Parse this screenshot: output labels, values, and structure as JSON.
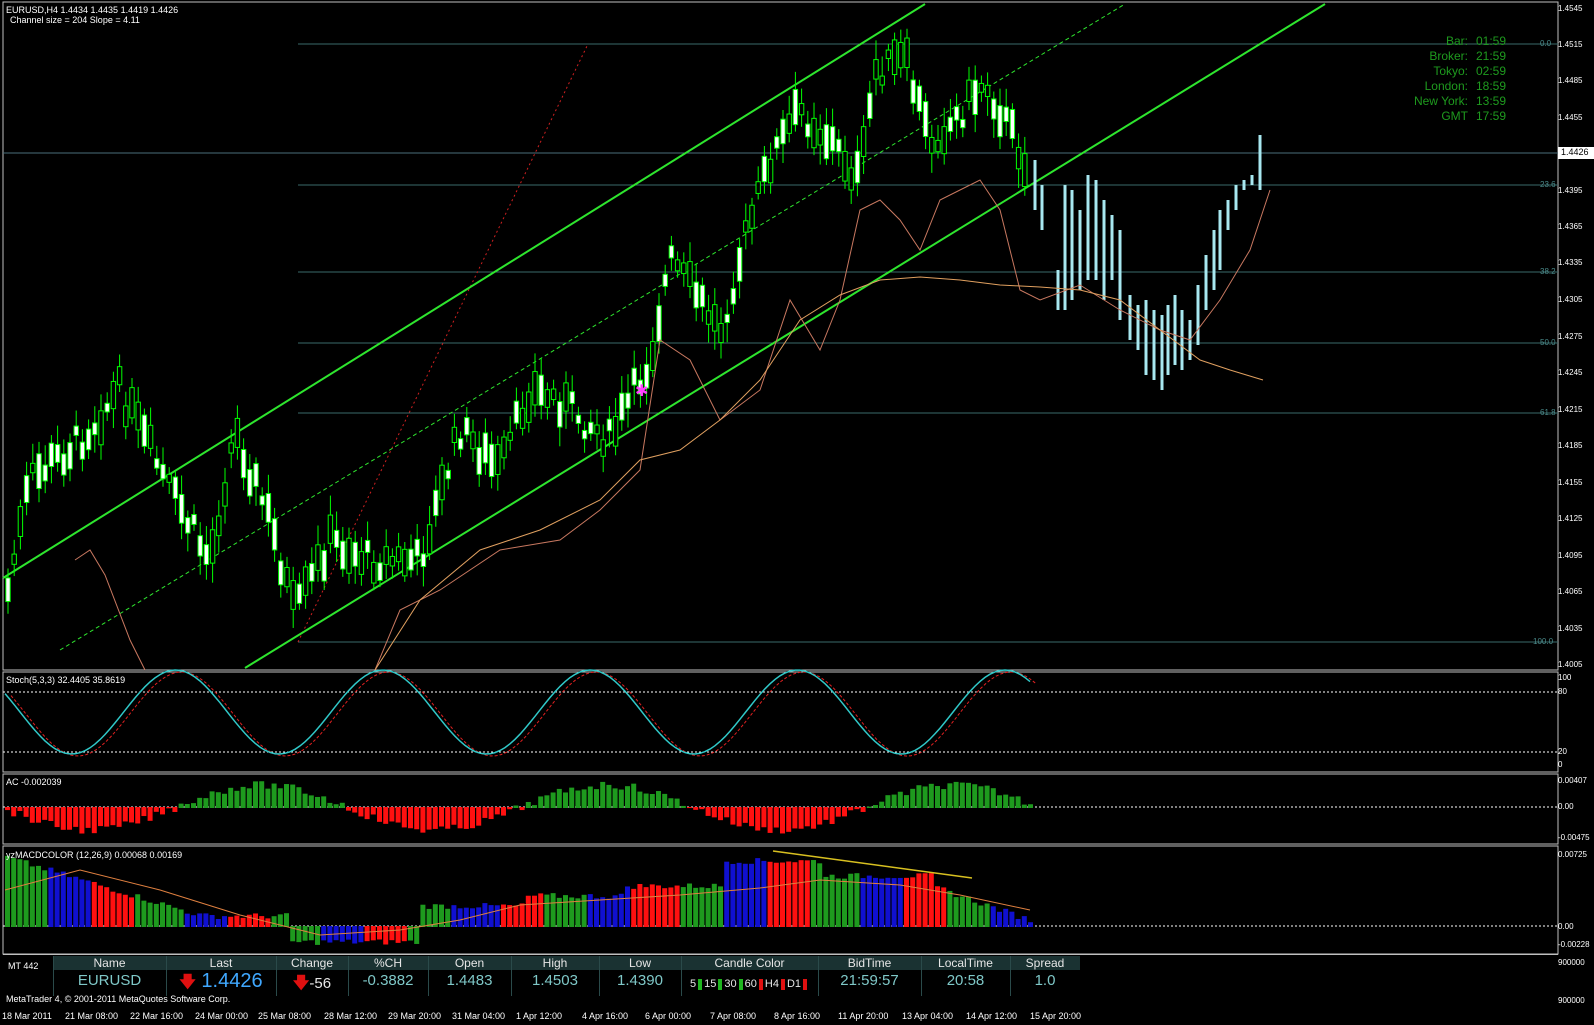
{
  "window": {
    "symbol_header": "EURUSD,H4  1.4434 1.4435 1.4419 1.4426",
    "channel_info": "Channel size = 204 Slope = 4.11",
    "current_price_tag": "1.4426"
  },
  "price_axis": [
    "1.4545",
    "1.4515",
    "1.4485",
    "1.4455",
    "1.4426",
    "1.4395",
    "1.4365",
    "1.4335",
    "1.4305",
    "1.4275",
    "1.4245",
    "1.4215",
    "1.4185",
    "1.4155",
    "1.4125",
    "1.4095",
    "1.4065",
    "1.4035",
    "1.4005"
  ],
  "fib_levels": [
    "0.0",
    "23.6",
    "38.2",
    "50.0",
    "61.8",
    "100.0"
  ],
  "clock": [
    {
      "k": "Bar:",
      "v": "01:59"
    },
    {
      "k": "Broker:",
      "v": "21:59"
    },
    {
      "k": "Tokyo:",
      "v": "02:59"
    },
    {
      "k": "London:",
      "v": "18:59"
    },
    {
      "k": "New York:",
      "v": "13:59"
    },
    {
      "k": "GMT",
      "v": "17:59"
    }
  ],
  "stoch": {
    "title": "Stoch(5,3,3) 32.4405 35.8619",
    "axis": [
      "100",
      "80",
      "20",
      "0"
    ]
  },
  "ac": {
    "title": "AC -0.002039",
    "axis": [
      "0.00407",
      "0.00",
      "-0.00475"
    ]
  },
  "macd": {
    "title": "yzMACDCOLOR (12,26,9) 0.00068 0.00169",
    "axis": [
      "0.00725",
      "0.00",
      "-0.00228",
      "900000",
      "900000"
    ]
  },
  "ticker": {
    "mt_label": "MT 442",
    "headers": [
      "Name",
      "Last",
      "Change",
      "%CH",
      "Open",
      "High",
      "Low",
      "Candle Color",
      "BidTime",
      "LocalTime",
      "Spread"
    ],
    "name": "EURUSD",
    "last": "1.4426",
    "change": "-56",
    "pct": "-0.3882",
    "open": "1.4483",
    "high": "1.4503",
    "low": "1.4390",
    "candle_tfs": [
      {
        "label": "5",
        "color": "#1fb51f"
      },
      {
        "label": "15",
        "color": "#1fb51f"
      },
      {
        "label": "30",
        "color": "#1fb51f"
      },
      {
        "label": "60",
        "color": "#e01010"
      },
      {
        "label": "H4",
        "color": "#e01010"
      },
      {
        "label": "D1",
        "color": "#e01010"
      }
    ],
    "bidtime": "21:59:57",
    "localtime": "20:58",
    "spread": "1.0"
  },
  "footer": "MetaTrader 4, © 2001-2011 MetaQuotes Software Corp.",
  "time_axis": [
    "18 Mar 2011",
    "21 Mar 08:00",
    "22 Mar 16:00",
    "24 Mar 00:00",
    "25 Mar 08:00",
    "28 Mar 12:00",
    "29 Mar 20:00",
    "31 Mar 04:00",
    "1 Apr 12:00",
    "4 Apr 16:00",
    "6 Apr 00:00",
    "7 Apr 08:00",
    "8 Apr 16:00",
    "11 Apr 20:00",
    "13 Apr 04:00",
    "14 Apr 12:00",
    "15 Apr 20:00"
  ],
  "colors": {
    "bull": "#00ff00",
    "bear": "#ffffff",
    "channel": "#2ee52e",
    "ma": "#c87860",
    "stoch_main": "#30c8c8",
    "stoch_sig": "#e02020",
    "ac_up": "#1e9a1e",
    "ac_down": "#ff1010",
    "macd_blue": "#1010d0",
    "proj": "#a8e8f0"
  }
}
